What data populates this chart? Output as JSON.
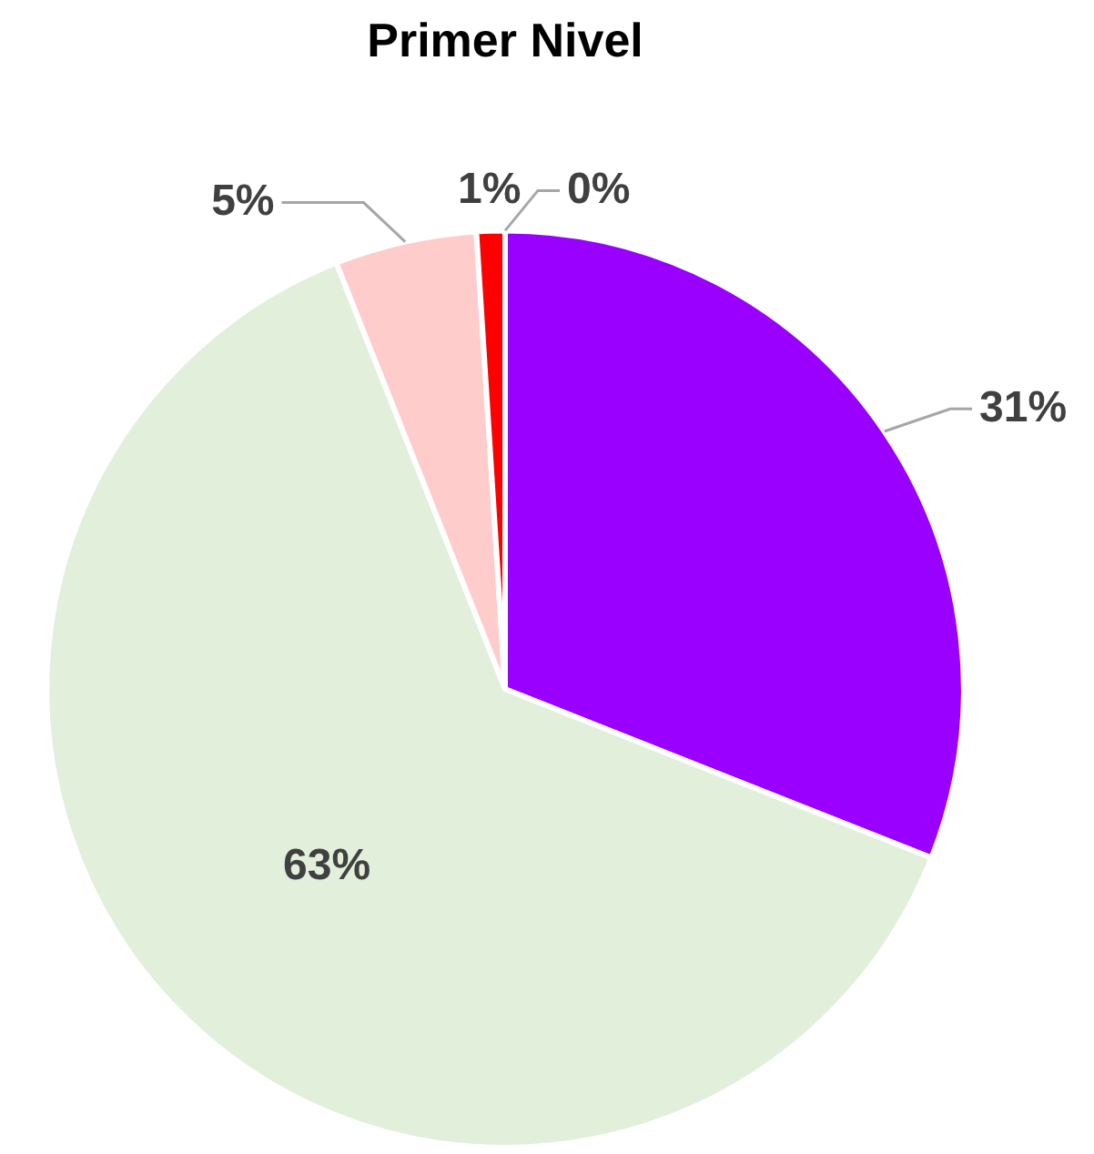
{
  "chart_data": {
    "type": "pie",
    "title": "Primer Nivel",
    "categories": [
      null,
      null,
      null,
      null,
      null
    ],
    "values": [
      31,
      63,
      5,
      1,
      0
    ],
    "colors": [
      "#9900ff",
      "#e2efda",
      "#ffcccc",
      "#ff0000",
      "#c00000"
    ],
    "value_labels": [
      "31%",
      "63%",
      "5%",
      "1%",
      "0%"
    ],
    "legend": false
  }
}
